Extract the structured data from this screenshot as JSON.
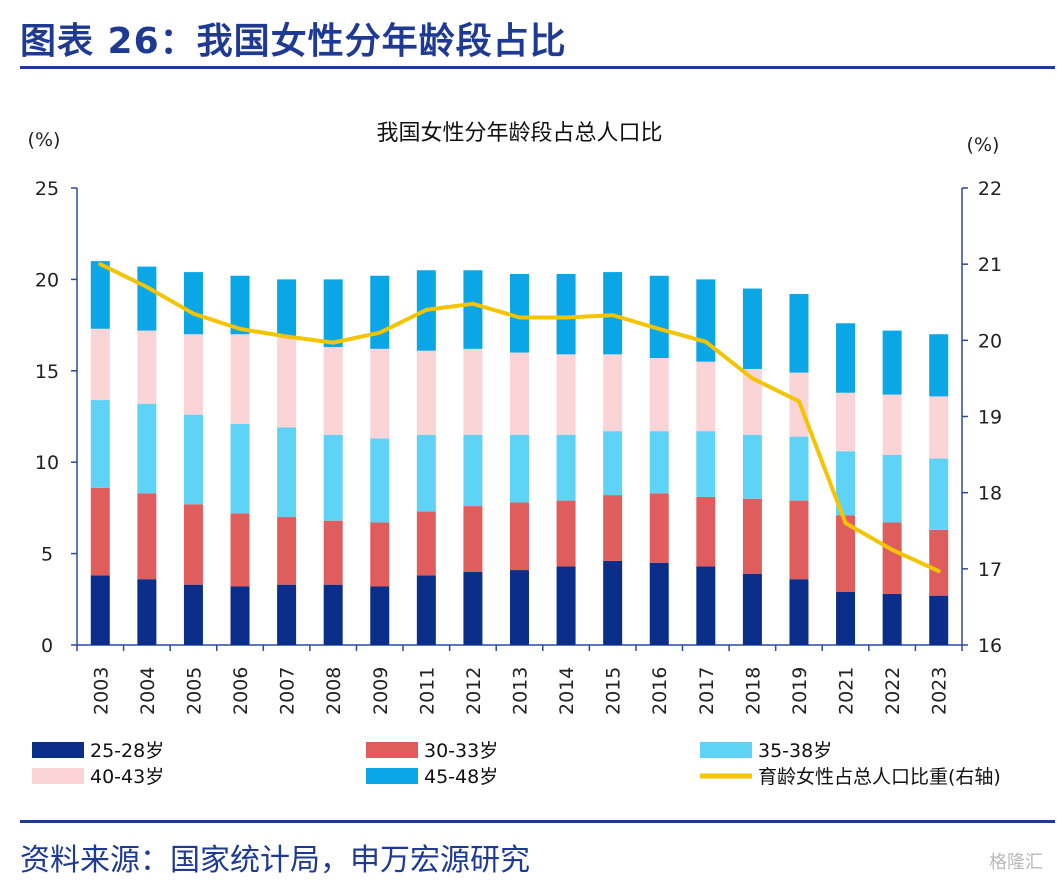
{
  "header": {
    "title": "图表 26：我国女性分年龄段占比"
  },
  "footer": {
    "source": "资料来源：国家统计局，申万宏源研究",
    "watermark": "格隆汇"
  },
  "chart_data": {
    "type": "bar",
    "stacked": true,
    "title": "我国女性分年龄段占总人口比",
    "left_unit": "(%)",
    "right_unit": "(%)",
    "categories": [
      "2003",
      "2004",
      "2005",
      "2006",
      "2007",
      "2008",
      "2009",
      "2011",
      "2012",
      "2013",
      "2014",
      "2015",
      "2016",
      "2017",
      "2018",
      "2019",
      "2021",
      "2022",
      "2023"
    ],
    "ylim": [
      0,
      25
    ],
    "yticks": [
      0,
      5,
      10,
      15,
      20,
      25
    ],
    "y2lim": [
      16,
      22
    ],
    "y2ticks": [
      16,
      17,
      18,
      19,
      20,
      21,
      22
    ],
    "series": [
      {
        "name": "25-28岁",
        "color": "#0a2e8a",
        "values": [
          3.8,
          3.6,
          3.3,
          3.2,
          3.3,
          3.3,
          3.2,
          3.8,
          4.0,
          4.1,
          4.3,
          4.6,
          4.5,
          4.3,
          3.9,
          3.6,
          2.9,
          2.8,
          2.7
        ]
      },
      {
        "name": "30-33岁",
        "color": "#e05d5d",
        "values": [
          4.8,
          4.7,
          4.4,
          4.0,
          3.7,
          3.5,
          3.5,
          3.5,
          3.6,
          3.7,
          3.6,
          3.6,
          3.8,
          3.8,
          4.1,
          4.3,
          4.2,
          3.9,
          3.6
        ]
      },
      {
        "name": "35-38岁",
        "color": "#5fd3f5",
        "values": [
          4.8,
          4.9,
          4.9,
          4.9,
          4.9,
          4.7,
          4.6,
          4.2,
          3.9,
          3.7,
          3.6,
          3.5,
          3.4,
          3.6,
          3.5,
          3.5,
          3.5,
          3.7,
          3.9
        ]
      },
      {
        "name": "40-43岁",
        "color": "#fad4d6",
        "values": [
          3.9,
          4.0,
          4.4,
          4.9,
          5.0,
          4.8,
          4.9,
          4.6,
          4.7,
          4.5,
          4.4,
          4.2,
          4.0,
          3.8,
          3.6,
          3.5,
          3.2,
          3.3,
          3.4
        ]
      },
      {
        "name": "45-48岁",
        "color": "#0aa6e6",
        "values": [
          3.7,
          3.5,
          3.4,
          3.2,
          3.1,
          3.7,
          4.0,
          4.4,
          4.3,
          4.3,
          4.4,
          4.5,
          4.5,
          4.5,
          4.4,
          4.3,
          3.8,
          3.5,
          3.4
        ]
      }
    ],
    "line": {
      "name": "育龄女性占总人口比重(右轴)",
      "color": "#f5c400",
      "values": [
        21.0,
        20.7,
        20.35,
        20.15,
        20.05,
        19.97,
        20.1,
        20.4,
        20.48,
        20.3,
        20.3,
        20.33,
        20.15,
        19.98,
        19.5,
        19.2,
        17.6,
        17.25,
        16.97
      ]
    },
    "legend": [
      {
        "label": "25-28岁",
        "kind": "bar",
        "color": "#0a2e8a"
      },
      {
        "label": "30-33岁",
        "kind": "bar",
        "color": "#e05d5d"
      },
      {
        "label": "35-38岁",
        "kind": "bar",
        "color": "#5fd3f5"
      },
      {
        "label": "40-43岁",
        "kind": "bar",
        "color": "#fad4d6"
      },
      {
        "label": "45-48岁",
        "kind": "bar",
        "color": "#0aa6e6"
      },
      {
        "label": "育龄女性占总人口比重(右轴)",
        "kind": "line",
        "color": "#f5c400"
      }
    ]
  }
}
